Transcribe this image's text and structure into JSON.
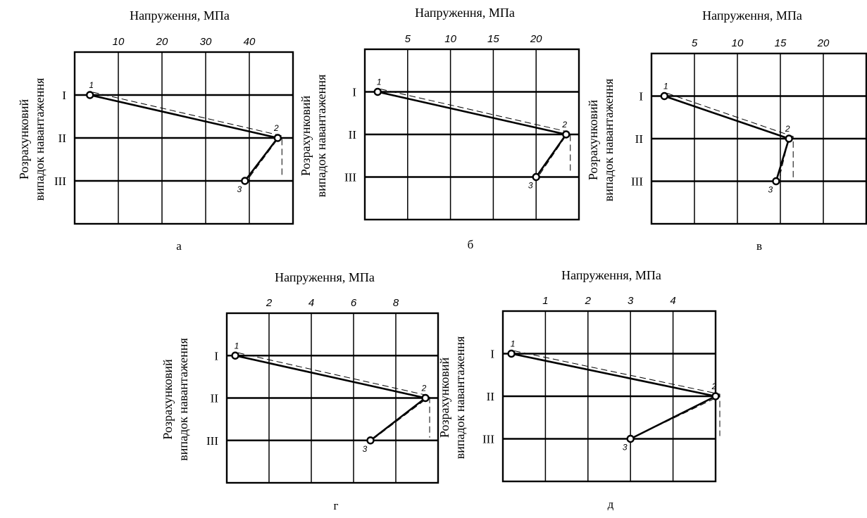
{
  "chart_data": [
    {
      "type": "line",
      "caption": "а",
      "title": "Напруження, МПа",
      "ylabel": [
        "Розрахунковий",
        "випадок навантаження"
      ],
      "categories": [
        "I",
        "II",
        "III"
      ],
      "xticks": [
        10,
        20,
        30,
        40
      ],
      "xlim": [
        0,
        50
      ],
      "grid": true,
      "series": [
        {
          "points": [
            {
              "label": "1",
              "x": 3.5,
              "y": "I"
            },
            {
              "label": "2",
              "x": 46.5,
              "y": "II"
            },
            {
              "label": "3",
              "x": 39,
              "y": "III"
            }
          ]
        }
      ]
    },
    {
      "type": "line",
      "caption": "б",
      "title": "Напруження, МПа",
      "ylabel": [
        "Розрахунковий",
        "випадок навантаження"
      ],
      "categories": [
        "I",
        "II",
        "III"
      ],
      "xticks": [
        5,
        10,
        15,
        20
      ],
      "xlim": [
        0,
        25
      ],
      "grid": true,
      "series": [
        {
          "points": [
            {
              "label": "1",
              "x": 1.5,
              "y": "I"
            },
            {
              "label": "2",
              "x": 23.5,
              "y": "II"
            },
            {
              "label": "3",
              "x": 20,
              "y": "III"
            }
          ]
        }
      ]
    },
    {
      "type": "line",
      "caption": "в",
      "title": "Напруження, МПа",
      "ylabel": [
        "Розрахунковий",
        "випадок навантаження"
      ],
      "categories": [
        "I",
        "II",
        "III"
      ],
      "xticks": [
        5,
        10,
        15,
        20
      ],
      "xlim": [
        0,
        25
      ],
      "grid": true,
      "series": [
        {
          "points": [
            {
              "label": "1",
              "x": 1.5,
              "y": "I"
            },
            {
              "label": "2",
              "x": 16,
              "y": "II"
            },
            {
              "label": "3",
              "x": 14.5,
              "y": "III"
            }
          ]
        }
      ]
    },
    {
      "type": "line",
      "caption": "г",
      "title": "Напруження, МПа",
      "ylabel": [
        "Розрахунковий",
        "випадок навантаження"
      ],
      "categories": [
        "I",
        "II",
        "III"
      ],
      "xticks": [
        2,
        4,
        6,
        8
      ],
      "xlim": [
        0,
        10
      ],
      "grid": true,
      "series": [
        {
          "points": [
            {
              "label": "1",
              "x": 0.4,
              "y": "I"
            },
            {
              "label": "2",
              "x": 9.4,
              "y": "II"
            },
            {
              "label": "3",
              "x": 6.8,
              "y": "III"
            }
          ]
        }
      ]
    },
    {
      "type": "line",
      "caption": "д",
      "title": "Напруження, МПа",
      "ylabel": [
        "Розрахунковий",
        "випадок навантаження"
      ],
      "categories": [
        "I",
        "II",
        "III"
      ],
      "xticks": [
        1,
        2,
        3,
        4
      ],
      "xlim": [
        0,
        5
      ],
      "grid": true,
      "series": [
        {
          "points": [
            {
              "label": "1",
              "x": 0.2,
              "y": "I"
            },
            {
              "label": "2",
              "x": 5,
              "y": "II"
            },
            {
              "label": "3",
              "x": 3,
              "y": "III"
            }
          ]
        }
      ]
    }
  ]
}
